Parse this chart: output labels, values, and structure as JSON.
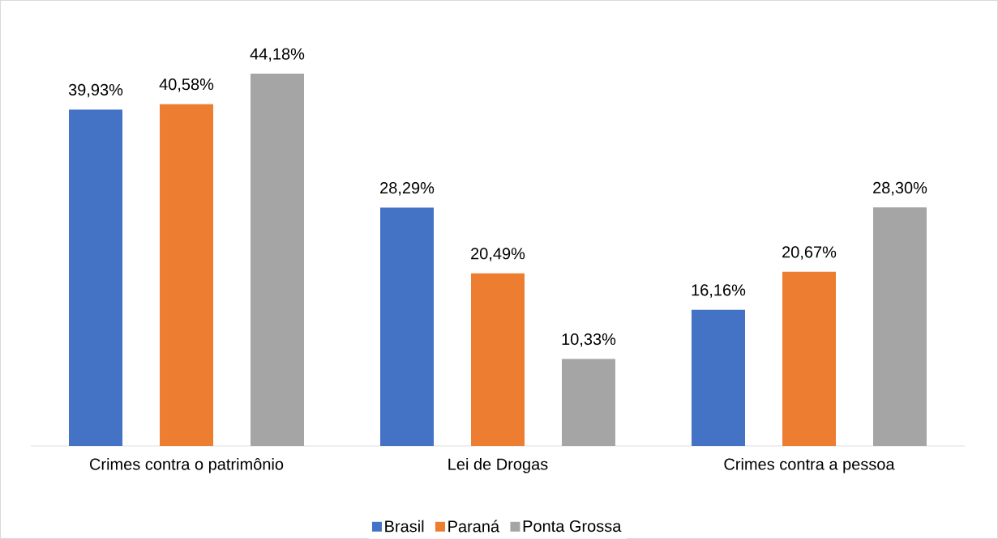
{
  "chart_data": {
    "type": "bar",
    "categories": [
      "Crimes contra o patrimônio",
      "Lei de Drogas",
      "Crimes contra a pessoa"
    ],
    "series": [
      {
        "name": "Brasil",
        "color": "#4472c4",
        "values": [
          39.93,
          28.29,
          16.16
        ],
        "value_labels": [
          "39,93%",
          "28,29%",
          "16,16%"
        ]
      },
      {
        "name": "Paraná",
        "color": "#ed7d31",
        "values": [
          40.58,
          20.49,
          20.67
        ],
        "value_labels": [
          "40,58%",
          "20,49%",
          "20,67%"
        ]
      },
      {
        "name": "Ponta Grossa",
        "color": "#a5a5a5",
        "values": [
          44.18,
          10.33,
          28.3
        ],
        "value_labels": [
          "44,18%",
          "10,33%",
          "28,30%"
        ]
      }
    ],
    "legend": "bottom"
  }
}
